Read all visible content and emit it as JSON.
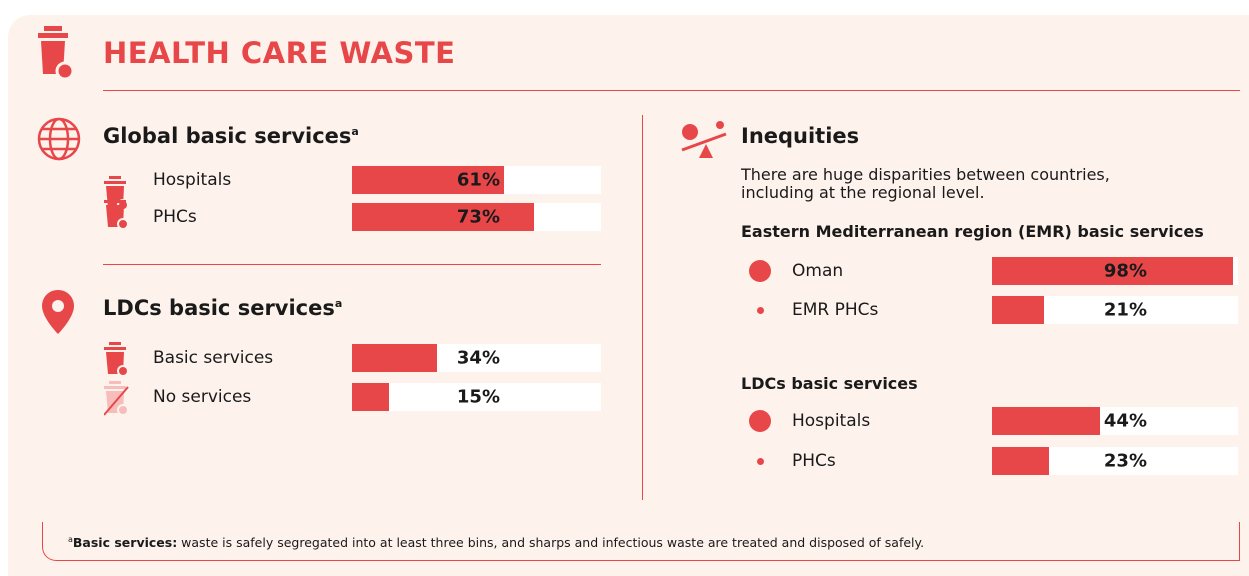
{
  "header": {
    "title": "HEALTH CARE WASTE"
  },
  "left": [
    {
      "title": "Global basic services",
      "superscript": "a",
      "rows": [
        {
          "label": "Hospitals",
          "value": 61,
          "value_label": "61%"
        },
        {
          "label": "PHCs",
          "value": 73,
          "value_label": "73%"
        }
      ]
    },
    {
      "title": "LDCs basic services",
      "superscript": "a",
      "rows": [
        {
          "label": "Basic services",
          "value": 34,
          "value_label": "34%"
        },
        {
          "label": "No services",
          "value": 15,
          "value_label": "15%"
        }
      ]
    }
  ],
  "right": {
    "title": "Inequities",
    "text_lines": [
      "There are huge disparities between countries,",
      "including at the regional level."
    ],
    "groups": [
      {
        "title": "Eastern Mediterranean region (EMR) basic services",
        "rows": [
          {
            "label": "Oman",
            "value": 98,
            "value_label": "98%"
          },
          {
            "label": "EMR PHCs",
            "value": 21,
            "value_label": "21%"
          }
        ]
      },
      {
        "title": "LDCs basic services",
        "rows": [
          {
            "label": "Hospitals",
            "value": 44,
            "value_label": "44%"
          },
          {
            "label": "PHCs",
            "value": 23,
            "value_label": "23%"
          }
        ]
      }
    ]
  },
  "footnote": {
    "marker": "a",
    "term": "Basic services:",
    "text": " waste is safely segregated into at least three bins, and sharps and infectious waste are treated and disposed of safely."
  }
}
